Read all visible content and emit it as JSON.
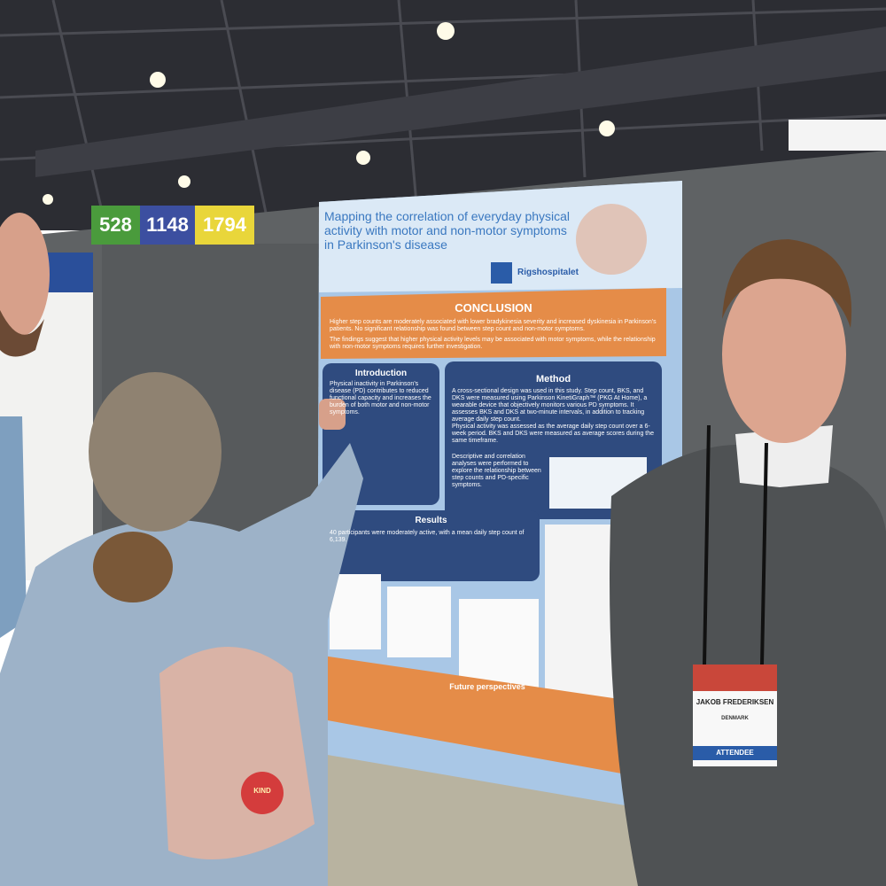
{
  "signs": [
    "528",
    "1148",
    "1794"
  ],
  "poster": {
    "title": "Mapping the correlation of everyday physical activity with motor and non-motor symptoms in Parkinson's disease",
    "institution": "Rigshospitalet",
    "conclusion": {
      "heading": "CONCLUSION",
      "points": [
        "Higher step counts are moderately associated with lower bradykinesia severity and increased dyskinesia in Parkinson's patients. No significant relationship was found between step count and non-motor symptoms.",
        "The findings suggest that higher physical activity levels may be associated with motor symptoms, while the relationship with non-motor symptoms requires further investigation."
      ]
    },
    "introduction": {
      "heading": "Introduction",
      "text": "Physical inactivity in Parkinson's disease (PD) contributes to reduced functional capacity and increases the burden of both motor and non-motor symptoms."
    },
    "method": {
      "heading": "Method",
      "points": [
        "A cross-sectional design was used in this study. Step count, BKS, and DKS were measured using Parkinson KinetiGraph™ (PKG At Home), a wearable device that objectively monitors various PD symptoms. It assesses BKS and DKS at two-minute intervals, in addition to tracking average daily step count.",
        "Physical activity was assessed as the average daily step count over a 6-week period. BKS and DKS were measured as average scores during the same timeframe.",
        "Descriptive and correlation analyses were performed to explore the relationship between step counts and PD-specific symptoms."
      ]
    },
    "results": {
      "heading": "Results",
      "text": "40 participants were moderately active, with a mean daily step count of 6,139."
    },
    "future": {
      "heading": "Future perspectives"
    }
  },
  "badge": {
    "name": "JAKOB FREDERIKSEN",
    "country": "DENMARK",
    "role": "ATTENDEE"
  },
  "backpack_patch": "KIND"
}
